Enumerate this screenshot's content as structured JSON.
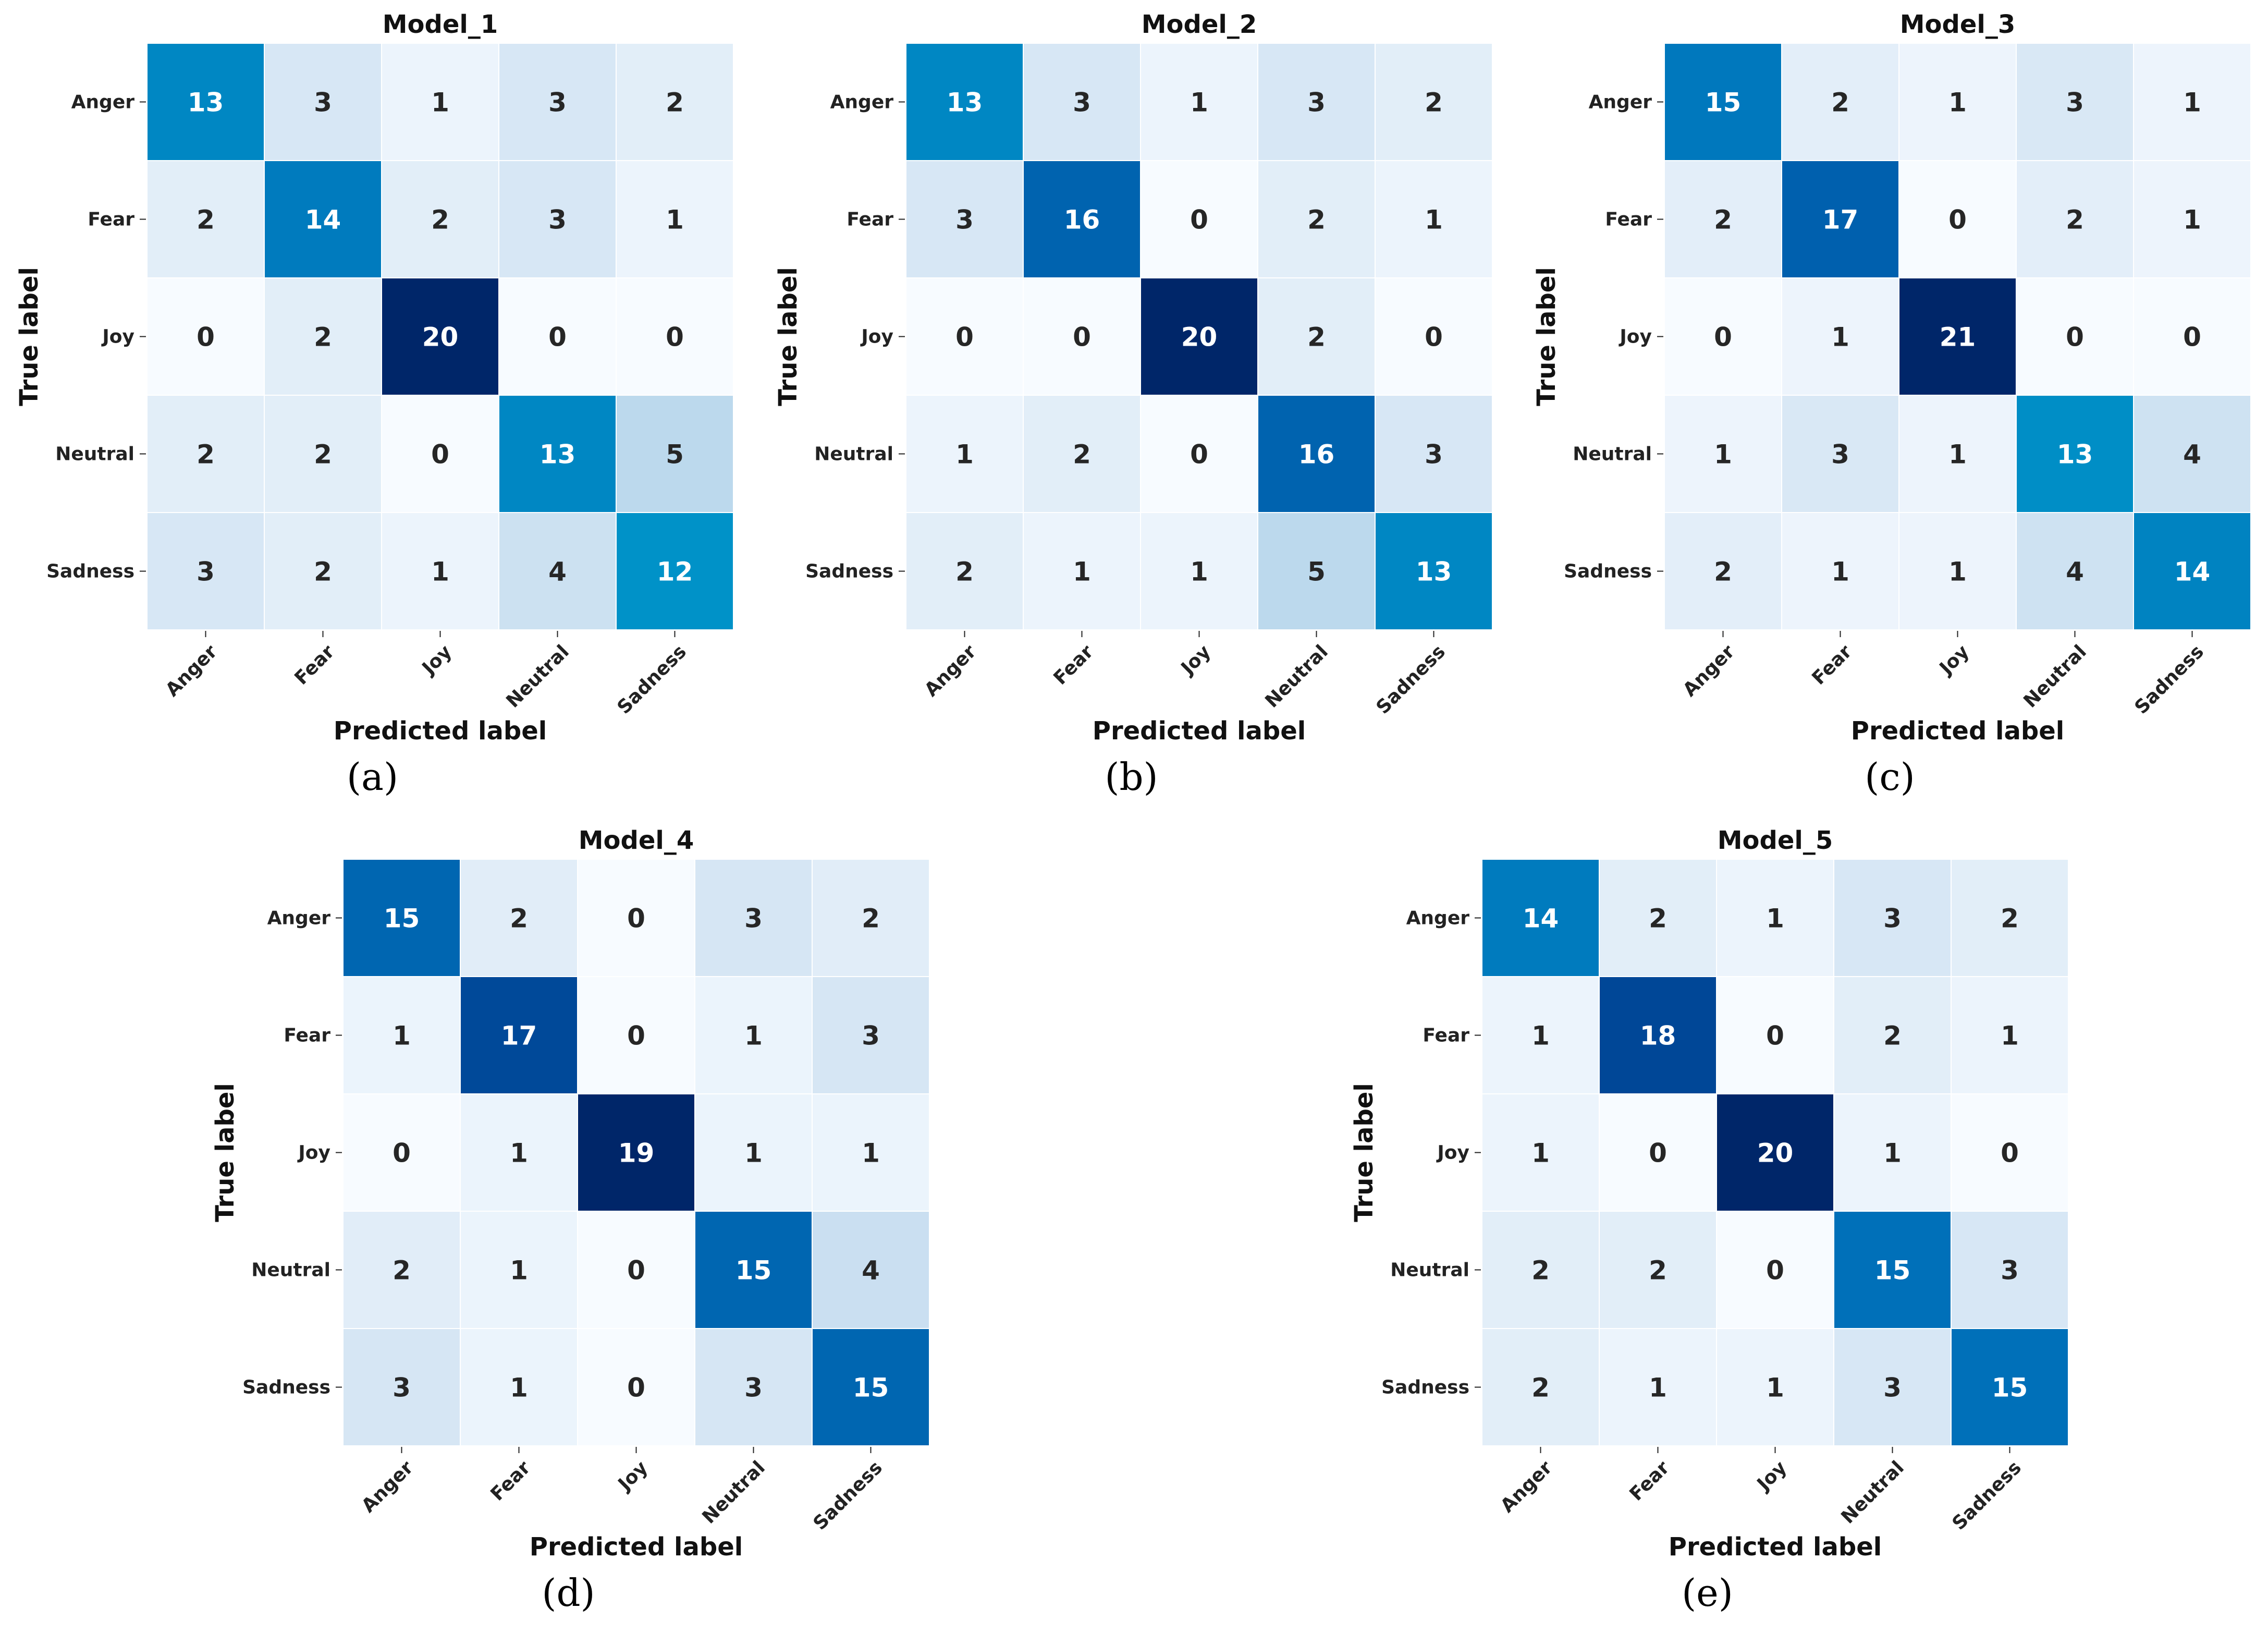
{
  "chart_data": [
    {
      "type": "heatmap",
      "panel": "(a)",
      "title": "Model_1",
      "xlabel": "Predicted label",
      "ylabel": "True label",
      "x_categories": [
        "Anger",
        "Fear",
        "Joy",
        "Neutral",
        "Sadness"
      ],
      "y_categories": [
        "Anger",
        "Fear",
        "Joy",
        "Neutral",
        "Sadness"
      ],
      "matrix": [
        [
          13,
          3,
          1,
          3,
          2
        ],
        [
          2,
          14,
          2,
          3,
          1
        ],
        [
          0,
          2,
          20,
          0,
          0
        ],
        [
          2,
          2,
          0,
          13,
          5
        ],
        [
          3,
          2,
          1,
          4,
          12
        ]
      ],
      "colormap": "Blues",
      "value_range": [
        0,
        20
      ]
    },
    {
      "type": "heatmap",
      "panel": "(b)",
      "title": "Model_2",
      "xlabel": "Predicted label",
      "ylabel": "True label",
      "x_categories": [
        "Anger",
        "Fear",
        "Joy",
        "Neutral",
        "Sadness"
      ],
      "y_categories": [
        "Anger",
        "Fear",
        "Joy",
        "Neutral",
        "Sadness"
      ],
      "matrix": [
        [
          13,
          3,
          1,
          3,
          2
        ],
        [
          3,
          16,
          0,
          2,
          1
        ],
        [
          0,
          0,
          20,
          2,
          0
        ],
        [
          1,
          2,
          0,
          16,
          3
        ],
        [
          2,
          1,
          1,
          5,
          13
        ]
      ],
      "colormap": "Blues",
      "value_range": [
        0,
        20
      ]
    },
    {
      "type": "heatmap",
      "panel": "(c)",
      "title": "Model_3",
      "xlabel": "Predicted label",
      "ylabel": "True label",
      "x_categories": [
        "Anger",
        "Fear",
        "Joy",
        "Neutral",
        "Sadness"
      ],
      "y_categories": [
        "Anger",
        "Fear",
        "Joy",
        "Neutral",
        "Sadness"
      ],
      "matrix": [
        [
          15,
          2,
          1,
          3,
          1
        ],
        [
          2,
          17,
          0,
          2,
          1
        ],
        [
          0,
          1,
          21,
          0,
          0
        ],
        [
          1,
          3,
          1,
          13,
          4
        ],
        [
          2,
          1,
          1,
          4,
          14
        ]
      ],
      "colormap": "Blues",
      "value_range": [
        0,
        21
      ]
    },
    {
      "type": "heatmap",
      "panel": "(d)",
      "title": "Model_4",
      "xlabel": "Predicted label",
      "ylabel": "True label",
      "x_categories": [
        "Anger",
        "Fear",
        "Joy",
        "Neutral",
        "Sadness"
      ],
      "y_categories": [
        "Anger",
        "Fear",
        "Joy",
        "Neutral",
        "Sadness"
      ],
      "matrix": [
        [
          15,
          2,
          0,
          3,
          2
        ],
        [
          1,
          17,
          0,
          1,
          3
        ],
        [
          0,
          1,
          19,
          1,
          1
        ],
        [
          2,
          1,
          0,
          15,
          4
        ],
        [
          3,
          1,
          0,
          3,
          15
        ]
      ],
      "colormap": "Blues",
      "value_range": [
        0,
        19
      ]
    },
    {
      "type": "heatmap",
      "panel": "(e)",
      "title": "Model_5",
      "xlabel": "Predicted label",
      "ylabel": "True label",
      "x_categories": [
        "Anger",
        "Fear",
        "Joy",
        "Neutral",
        "Sadness"
      ],
      "y_categories": [
        "Anger",
        "Fear",
        "Joy",
        "Neutral",
        "Sadness"
      ],
      "matrix": [
        [
          14,
          2,
          1,
          3,
          2
        ],
        [
          1,
          18,
          0,
          2,
          1
        ],
        [
          1,
          0,
          20,
          1,
          0
        ],
        [
          2,
          2,
          0,
          15,
          3
        ],
        [
          2,
          1,
          1,
          3,
          15
        ]
      ],
      "colormap": "Blues",
      "value_range": [
        0,
        20
      ]
    }
  ]
}
